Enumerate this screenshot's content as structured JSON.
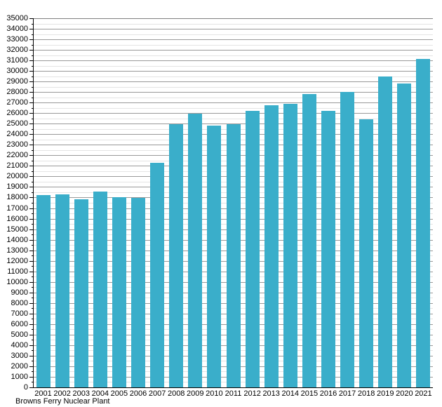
{
  "footer_label": "Browns Ferry Nuclear Plant",
  "colors": {
    "bar": "#3aaeca",
    "grid_major": "#999999",
    "grid_major_top": "#808080",
    "grid_minor": "#e4e4e4",
    "axis": "#000000"
  },
  "chart_data": {
    "type": "bar",
    "title": "",
    "xlabel": "Browns Ferry Nuclear Plant",
    "ylabel": "",
    "categories": [
      "2001",
      "2002",
      "2003",
      "2004",
      "2005",
      "2006",
      "2007",
      "2008",
      "2009",
      "2010",
      "2011",
      "2012",
      "2013",
      "2014",
      "2015",
      "2016",
      "2017",
      "2018",
      "2019",
      "2020",
      "2021"
    ],
    "values": [
      18250,
      18300,
      17800,
      18550,
      18050,
      17950,
      21300,
      24950,
      25950,
      24850,
      24950,
      26200,
      26750,
      26850,
      27800,
      26250,
      28000,
      25400,
      29500,
      28800,
      31150
    ],
    "ylim": [
      0,
      35000
    ],
    "y_major_step": 1000,
    "y_minor_step": 500,
    "grid": true,
    "legend_position": "none"
  }
}
